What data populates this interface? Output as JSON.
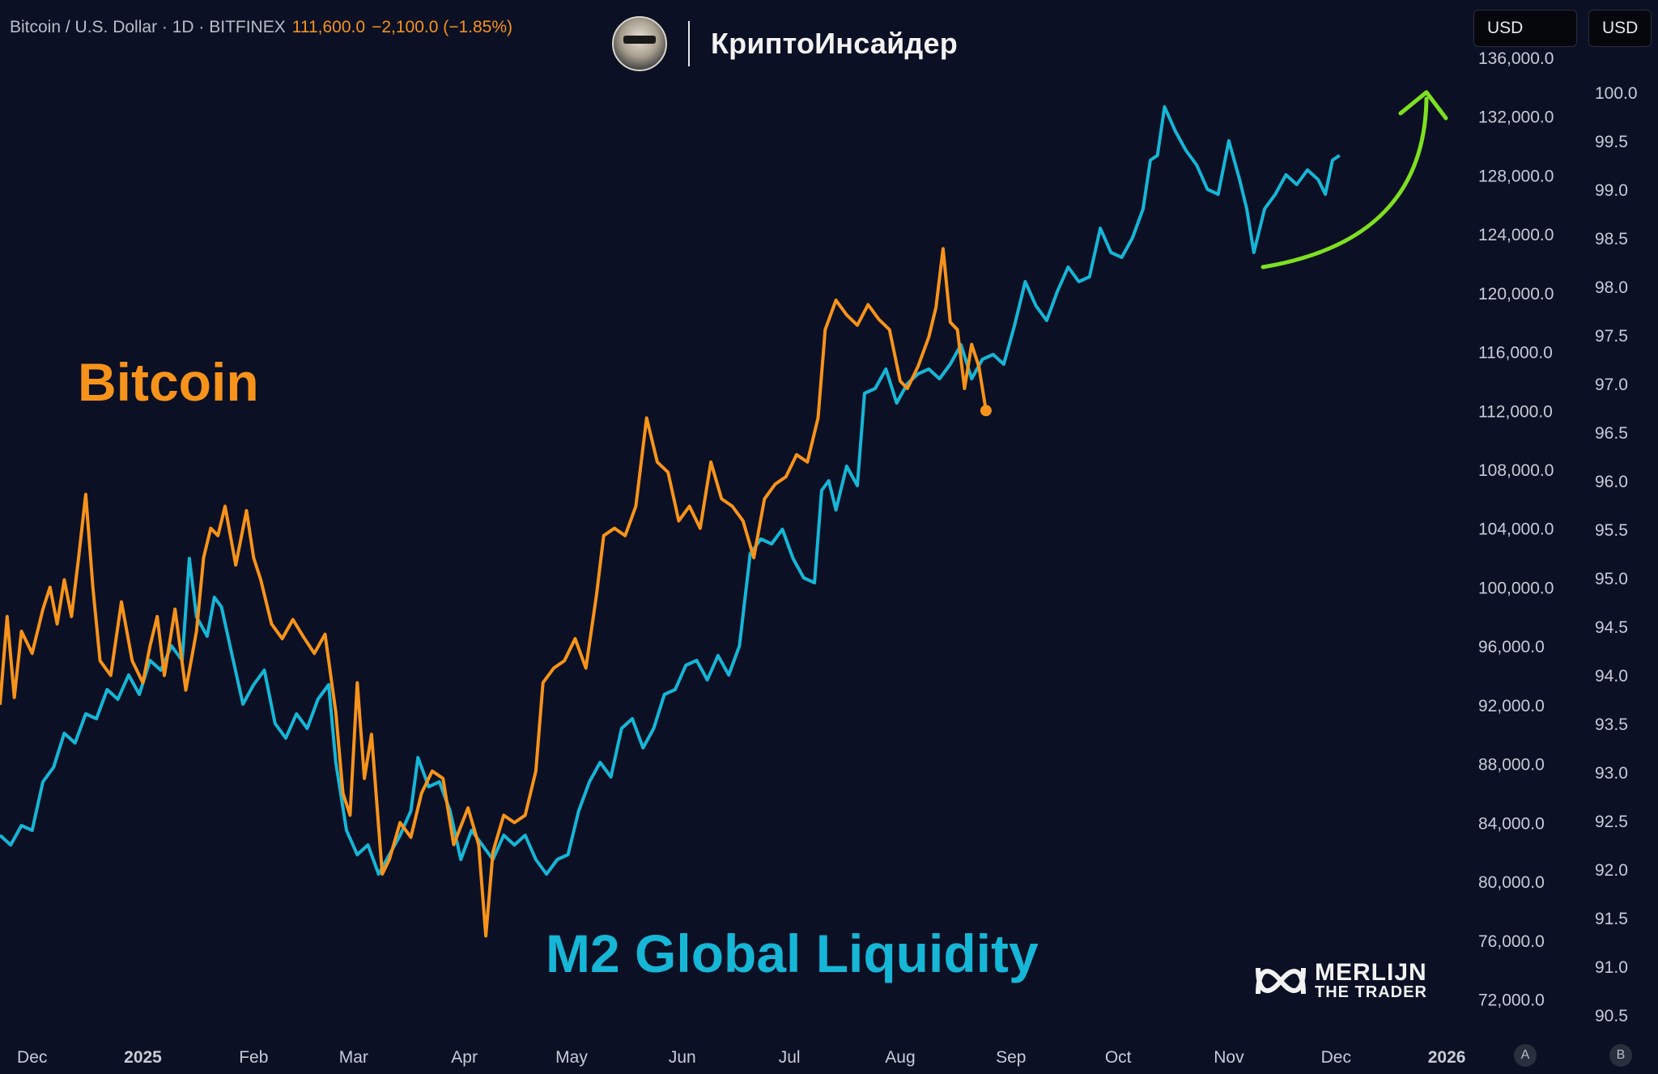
{
  "header": {
    "symbol": "Bitcoin / U.S. Dollar · 1D · BITFINEX",
    "price": "111,600.0",
    "change": "−2,100.0 (−1.85%)"
  },
  "brand": {
    "name": "КриптоИнсайдер"
  },
  "watermark": {
    "name": "MERLIJN",
    "sub": "THE TRADER"
  },
  "currency_buttons": [
    "USD",
    "USD"
  ],
  "scale_buttons": [
    "A",
    "B"
  ],
  "labels": {
    "bitcoin": "Bitcoin",
    "m2": "M2 Global Liquidity"
  },
  "colors": {
    "background": "#0b1025",
    "bitcoin": "#f7931a",
    "m2": "#16b6d6",
    "arrow": "#7ee021",
    "axis_text": "#c8cbd6"
  },
  "chart_data": {
    "type": "line",
    "x_axis": {
      "ticks": [
        "Dec",
        "2025",
        "Feb",
        "Mar",
        "Apr",
        "May",
        "Jun",
        "Jul",
        "Aug",
        "Sep",
        "Oct",
        "Nov",
        "Dec",
        "2026"
      ],
      "bold_ticks": [
        "2025",
        "2026"
      ],
      "range": [
        "2024-11-22",
        "2026-01-08"
      ]
    },
    "y_left_axis": {
      "series": "Bitcoin",
      "ticks": [
        "136,000.0",
        "132,000.0",
        "128,000.0",
        "124,000.0",
        "120,000.0",
        "116,000.0",
        "112,000.0",
        "108,000.0",
        "104,000.0",
        "100,000.0",
        "96,000.0",
        "92,000.0",
        "88,000.0",
        "84,000.0",
        "80,000.0",
        "76,000.0",
        "72,000.0"
      ],
      "range": [
        70600,
        136600
      ]
    },
    "y_right_axis": {
      "series": "M2 Global Liquidity",
      "ticks": [
        "100.0",
        "99.5",
        "99.0",
        "98.5",
        "98.0",
        "97.5",
        "97.0",
        "96.5",
        "96.0",
        "95.5",
        "95.0",
        "94.5",
        "94.0",
        "93.5",
        "93.0",
        "92.5",
        "92.0",
        "91.5",
        "91.0",
        "90.5"
      ],
      "range": [
        90.45,
        100.45
      ]
    },
    "series": [
      {
        "name": "Bitcoin",
        "axis": "left",
        "points": [
          [
            "2024-11-22",
            92000
          ],
          [
            "2024-11-24",
            98000
          ],
          [
            "2024-11-26",
            92500
          ],
          [
            "2024-11-28",
            97000
          ],
          [
            "2024-12-01",
            95500
          ],
          [
            "2024-12-04",
            98500
          ],
          [
            "2024-12-06",
            100000
          ],
          [
            "2024-12-08",
            97500
          ],
          [
            "2024-12-10",
            100500
          ],
          [
            "2024-12-12",
            98000
          ],
          [
            "2024-12-14",
            102000
          ],
          [
            "2024-12-16",
            106300
          ],
          [
            "2024-12-18",
            100000
          ],
          [
            "2024-12-20",
            95000
          ],
          [
            "2024-12-23",
            94000
          ],
          [
            "2024-12-26",
            99000
          ],
          [
            "2024-12-29",
            95000
          ],
          [
            "2025-01-01",
            93500
          ],
          [
            "2025-01-03",
            96000
          ],
          [
            "2025-01-05",
            98000
          ],
          [
            "2025-01-07",
            94000
          ],
          [
            "2025-01-10",
            98500
          ],
          [
            "2025-01-13",
            93000
          ],
          [
            "2025-01-16",
            97000
          ],
          [
            "2025-01-18",
            102000
          ],
          [
            "2025-01-20",
            104000
          ],
          [
            "2025-01-22",
            103500
          ],
          [
            "2025-01-24",
            105500
          ],
          [
            "2025-01-27",
            101500
          ],
          [
            "2025-01-30",
            105200
          ],
          [
            "2025-02-01",
            102000
          ],
          [
            "2025-02-03",
            100500
          ],
          [
            "2025-02-06",
            97500
          ],
          [
            "2025-02-09",
            96500
          ],
          [
            "2025-02-12",
            97800
          ],
          [
            "2025-02-15",
            96600
          ],
          [
            "2025-02-18",
            95500
          ],
          [
            "2025-02-21",
            96800
          ],
          [
            "2025-02-24",
            91500
          ],
          [
            "2025-02-26",
            86000
          ],
          [
            "2025-02-28",
            84500
          ],
          [
            "2025-03-02",
            93500
          ],
          [
            "2025-03-04",
            87000
          ],
          [
            "2025-03-06",
            90000
          ],
          [
            "2025-03-09",
            80500
          ],
          [
            "2025-03-11",
            81500
          ],
          [
            "2025-03-14",
            84000
          ],
          [
            "2025-03-17",
            83000
          ],
          [
            "2025-03-20",
            86000
          ],
          [
            "2025-03-23",
            87500
          ],
          [
            "2025-03-26",
            87000
          ],
          [
            "2025-03-29",
            82500
          ],
          [
            "2025-04-02",
            85000
          ],
          [
            "2025-04-05",
            82500
          ],
          [
            "2025-04-07",
            76300
          ],
          [
            "2025-04-09",
            82000
          ],
          [
            "2025-04-12",
            84500
          ],
          [
            "2025-04-15",
            84000
          ],
          [
            "2025-04-18",
            84500
          ],
          [
            "2025-04-21",
            87500
          ],
          [
            "2025-04-23",
            93500
          ],
          [
            "2025-04-26",
            94500
          ],
          [
            "2025-04-29",
            95000
          ],
          [
            "2025-05-02",
            96500
          ],
          [
            "2025-05-05",
            94500
          ],
          [
            "2025-05-08",
            99500
          ],
          [
            "2025-05-10",
            103500
          ],
          [
            "2025-05-13",
            104000
          ],
          [
            "2025-05-16",
            103500
          ],
          [
            "2025-05-19",
            105500
          ],
          [
            "2025-05-22",
            111500
          ],
          [
            "2025-05-25",
            108500
          ],
          [
            "2025-05-28",
            107800
          ],
          [
            "2025-05-31",
            104500
          ],
          [
            "2025-06-03",
            105500
          ],
          [
            "2025-06-06",
            104000
          ],
          [
            "2025-06-09",
            108500
          ],
          [
            "2025-06-12",
            106000
          ],
          [
            "2025-06-15",
            105500
          ],
          [
            "2025-06-18",
            104500
          ],
          [
            "2025-06-21",
            102000
          ],
          [
            "2025-06-24",
            106000
          ],
          [
            "2025-06-27",
            107000
          ],
          [
            "2025-06-30",
            107500
          ],
          [
            "2025-07-03",
            109000
          ],
          [
            "2025-07-06",
            108500
          ],
          [
            "2025-07-09",
            111500
          ],
          [
            "2025-07-11",
            117500
          ],
          [
            "2025-07-14",
            119500
          ],
          [
            "2025-07-17",
            118500
          ],
          [
            "2025-07-20",
            117800
          ],
          [
            "2025-07-23",
            119200
          ],
          [
            "2025-07-26",
            118200
          ],
          [
            "2025-07-29",
            117500
          ],
          [
            "2025-08-01",
            114000
          ],
          [
            "2025-08-03",
            113500
          ],
          [
            "2025-08-06",
            115000
          ],
          [
            "2025-08-09",
            117000
          ],
          [
            "2025-08-11",
            119000
          ],
          [
            "2025-08-13",
            123000
          ],
          [
            "2025-08-15",
            118000
          ],
          [
            "2025-08-17",
            117500
          ],
          [
            "2025-08-19",
            113500
          ],
          [
            "2025-08-21",
            116500
          ],
          [
            "2025-08-23",
            115000
          ],
          [
            "2025-08-25",
            112000
          ]
        ]
      },
      {
        "name": "M2 Global Liquidity",
        "axis": "right",
        "points": [
          [
            "2024-11-22",
            92.35
          ],
          [
            "2024-11-25",
            92.25
          ],
          [
            "2024-11-28",
            92.45
          ],
          [
            "2024-12-01",
            92.4
          ],
          [
            "2024-12-04",
            92.9
          ],
          [
            "2024-12-07",
            93.05
          ],
          [
            "2024-12-10",
            93.4
          ],
          [
            "2024-12-13",
            93.3
          ],
          [
            "2024-12-16",
            93.6
          ],
          [
            "2024-12-19",
            93.55
          ],
          [
            "2024-12-22",
            93.85
          ],
          [
            "2024-12-25",
            93.75
          ],
          [
            "2024-12-28",
            94.0
          ],
          [
            "2024-12-31",
            93.8
          ],
          [
            "2025-01-03",
            94.15
          ],
          [
            "2025-01-06",
            94.05
          ],
          [
            "2025-01-09",
            94.3
          ],
          [
            "2025-01-12",
            94.15
          ],
          [
            "2025-01-14",
            95.2
          ],
          [
            "2025-01-16",
            94.6
          ],
          [
            "2025-01-19",
            94.4
          ],
          [
            "2025-01-21",
            94.8
          ],
          [
            "2025-01-23",
            94.7
          ],
          [
            "2025-01-26",
            94.2
          ],
          [
            "2025-01-29",
            93.7
          ],
          [
            "2025-02-01",
            93.9
          ],
          [
            "2025-02-04",
            94.05
          ],
          [
            "2025-02-07",
            93.5
          ],
          [
            "2025-02-10",
            93.35
          ],
          [
            "2025-02-13",
            93.6
          ],
          [
            "2025-02-16",
            93.45
          ],
          [
            "2025-02-19",
            93.75
          ],
          [
            "2025-02-22",
            93.9
          ],
          [
            "2025-02-24",
            93.1
          ],
          [
            "2025-02-27",
            92.4
          ],
          [
            "2025-03-02",
            92.15
          ],
          [
            "2025-03-05",
            92.25
          ],
          [
            "2025-03-08",
            91.95
          ],
          [
            "2025-03-11",
            92.15
          ],
          [
            "2025-03-14",
            92.35
          ],
          [
            "2025-03-17",
            92.6
          ],
          [
            "2025-03-19",
            93.15
          ],
          [
            "2025-03-22",
            92.85
          ],
          [
            "2025-03-25",
            92.9
          ],
          [
            "2025-03-28",
            92.6
          ],
          [
            "2025-03-31",
            92.1
          ],
          [
            "2025-04-03",
            92.4
          ],
          [
            "2025-04-06",
            92.25
          ],
          [
            "2025-04-09",
            92.1
          ],
          [
            "2025-04-12",
            92.35
          ],
          [
            "2025-04-15",
            92.25
          ],
          [
            "2025-04-18",
            92.35
          ],
          [
            "2025-04-21",
            92.1
          ],
          [
            "2025-04-24",
            91.95
          ],
          [
            "2025-04-27",
            92.1
          ],
          [
            "2025-04-30",
            92.15
          ],
          [
            "2025-05-03",
            92.6
          ],
          [
            "2025-05-06",
            92.9
          ],
          [
            "2025-05-09",
            93.1
          ],
          [
            "2025-05-12",
            92.95
          ],
          [
            "2025-05-15",
            93.45
          ],
          [
            "2025-05-18",
            93.55
          ],
          [
            "2025-05-21",
            93.25
          ],
          [
            "2025-05-24",
            93.45
          ],
          [
            "2025-05-27",
            93.8
          ],
          [
            "2025-05-30",
            93.85
          ],
          [
            "2025-06-02",
            94.1
          ],
          [
            "2025-06-05",
            94.15
          ],
          [
            "2025-06-08",
            93.95
          ],
          [
            "2025-06-11",
            94.2
          ],
          [
            "2025-06-14",
            94.0
          ],
          [
            "2025-06-17",
            94.3
          ],
          [
            "2025-06-20",
            95.25
          ],
          [
            "2025-06-23",
            95.4
          ],
          [
            "2025-06-26",
            95.35
          ],
          [
            "2025-06-29",
            95.5
          ],
          [
            "2025-07-02",
            95.2
          ],
          [
            "2025-07-05",
            95.0
          ],
          [
            "2025-07-08",
            94.95
          ],
          [
            "2025-07-10",
            95.9
          ],
          [
            "2025-07-12",
            96.0
          ],
          [
            "2025-07-14",
            95.7
          ],
          [
            "2025-07-17",
            96.15
          ],
          [
            "2025-07-20",
            95.95
          ],
          [
            "2025-07-22",
            96.9
          ],
          [
            "2025-07-25",
            96.95
          ],
          [
            "2025-07-28",
            97.15
          ],
          [
            "2025-07-31",
            96.8
          ],
          [
            "2025-08-03",
            97.0
          ],
          [
            "2025-08-06",
            97.1
          ],
          [
            "2025-08-09",
            97.15
          ],
          [
            "2025-08-12",
            97.05
          ],
          [
            "2025-08-15",
            97.2
          ],
          [
            "2025-08-18",
            97.4
          ],
          [
            "2025-08-21",
            97.05
          ],
          [
            "2025-08-24",
            97.25
          ],
          [
            "2025-08-27",
            97.3
          ],
          [
            "2025-08-30",
            97.2
          ],
          [
            "2025-09-02",
            97.6
          ],
          [
            "2025-09-05",
            98.05
          ],
          [
            "2025-09-08",
            97.8
          ],
          [
            "2025-09-11",
            97.65
          ],
          [
            "2025-09-14",
            97.95
          ],
          [
            "2025-09-17",
            98.2
          ],
          [
            "2025-09-20",
            98.05
          ],
          [
            "2025-09-23",
            98.1
          ],
          [
            "2025-09-26",
            98.6
          ],
          [
            "2025-09-29",
            98.35
          ],
          [
            "2025-10-02",
            98.3
          ],
          [
            "2025-10-05",
            98.5
          ],
          [
            "2025-10-08",
            98.8
          ],
          [
            "2025-10-10",
            99.3
          ],
          [
            "2025-10-12",
            99.35
          ],
          [
            "2025-10-14",
            99.85
          ],
          [
            "2025-10-17",
            99.6
          ],
          [
            "2025-10-20",
            99.4
          ],
          [
            "2025-10-23",
            99.25
          ],
          [
            "2025-10-26",
            99.0
          ],
          [
            "2025-10-29",
            98.95
          ],
          [
            "2025-11-01",
            99.5
          ],
          [
            "2025-11-04",
            99.1
          ],
          [
            "2025-11-06",
            98.8
          ],
          [
            "2025-11-08",
            98.35
          ],
          [
            "2025-11-11",
            98.8
          ],
          [
            "2025-11-14",
            98.95
          ],
          [
            "2025-11-17",
            99.15
          ],
          [
            "2025-11-20",
            99.05
          ],
          [
            "2025-11-23",
            99.2
          ],
          [
            "2025-11-26",
            99.1
          ],
          [
            "2025-11-28",
            98.95
          ],
          [
            "2025-11-30",
            99.3
          ],
          [
            "2025-12-02",
            99.35
          ]
        ]
      }
    ]
  }
}
